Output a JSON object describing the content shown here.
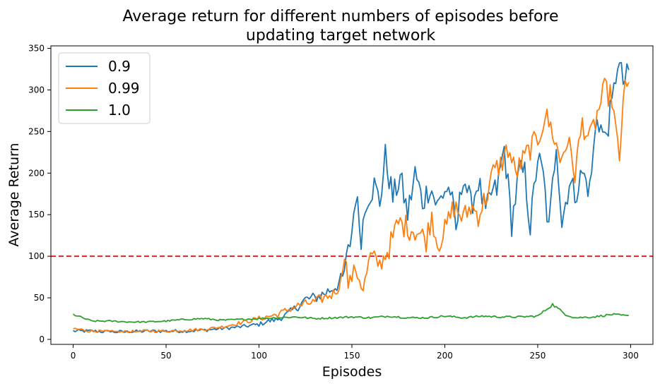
{
  "chart_data": {
    "type": "line",
    "title_lines": [
      "Average return for different numbers of episodes before",
      "updating target network"
    ],
    "xlabel": "Episodes",
    "ylabel": "Average Return",
    "xlim": [
      -12,
      312
    ],
    "ylim": [
      -6,
      353
    ],
    "xticks": [
      0,
      50,
      100,
      150,
      200,
      250,
      300
    ],
    "yticks": [
      0,
      50,
      100,
      150,
      200,
      250,
      300,
      350
    ],
    "grid": false,
    "legend_position": "top-left",
    "threshold": {
      "y": 100,
      "color": "#d62728",
      "style": "dashed"
    },
    "series": [
      {
        "name": "0.9",
        "color": "#1f77b4",
        "anchors": [
          [
            0,
            10
          ],
          [
            10,
            10
          ],
          [
            20,
            9
          ],
          [
            30,
            9
          ],
          [
            40,
            10
          ],
          [
            50,
            10
          ],
          [
            60,
            10
          ],
          [
            70,
            11
          ],
          [
            80,
            13
          ],
          [
            90,
            15
          ],
          [
            100,
            18
          ],
          [
            105,
            22
          ],
          [
            110,
            24
          ],
          [
            115,
            30
          ],
          [
            120,
            38
          ],
          [
            125,
            48
          ],
          [
            130,
            50
          ],
          [
            135,
            55
          ],
          [
            140,
            62
          ],
          [
            145,
            72
          ],
          [
            148,
            105
          ],
          [
            150,
            130
          ],
          [
            152,
            175
          ],
          [
            155,
            125
          ],
          [
            158,
            170
          ],
          [
            162,
            185
          ],
          [
            165,
            165
          ],
          [
            168,
            220
          ],
          [
            172,
            170
          ],
          [
            176,
            195
          ],
          [
            180,
            150
          ],
          [
            184,
            200
          ],
          [
            188,
            165
          ],
          [
            192,
            185
          ],
          [
            196,
            160
          ],
          [
            200,
            180
          ],
          [
            203,
            180
          ],
          [
            206,
            128
          ],
          [
            210,
            200
          ],
          [
            214,
            160
          ],
          [
            218,
            190
          ],
          [
            222,
            150
          ],
          [
            225,
            175
          ],
          [
            228,
            180
          ],
          [
            232,
            230
          ],
          [
            236,
            140
          ],
          [
            240,
            200
          ],
          [
            243,
            200
          ],
          [
            246,
            135
          ],
          [
            250,
            220
          ],
          [
            253,
            195
          ],
          [
            256,
            130
          ],
          [
            260,
            240
          ],
          [
            263,
            140
          ],
          [
            267,
            190
          ],
          [
            270,
            175
          ],
          [
            274,
            200
          ],
          [
            278,
            180
          ],
          [
            282,
            270
          ],
          [
            286,
            240
          ],
          [
            290,
            280
          ],
          [
            293,
            335
          ],
          [
            296,
            310
          ],
          [
            299,
            318
          ]
        ],
        "noise": 17
      },
      {
        "name": "0.99",
        "color": "#ff7f0e",
        "anchors": [
          [
            0,
            13
          ],
          [
            10,
            10
          ],
          [
            20,
            9
          ],
          [
            30,
            9
          ],
          [
            40,
            10
          ],
          [
            50,
            10
          ],
          [
            60,
            11
          ],
          [
            70,
            12
          ],
          [
            80,
            15
          ],
          [
            90,
            20
          ],
          [
            100,
            25
          ],
          [
            110,
            30
          ],
          [
            120,
            40
          ],
          [
            130,
            45
          ],
          [
            140,
            55
          ],
          [
            144,
            68
          ],
          [
            146,
            110
          ],
          [
            148,
            65
          ],
          [
            152,
            85
          ],
          [
            156,
            60
          ],
          [
            160,
            100
          ],
          [
            165,
            90
          ],
          [
            170,
            110
          ],
          [
            175,
            140
          ],
          [
            180,
            135
          ],
          [
            185,
            130
          ],
          [
            190,
            120
          ],
          [
            193,
            150
          ],
          [
            196,
            115
          ],
          [
            200,
            130
          ],
          [
            205,
            160
          ],
          [
            210,
            145
          ],
          [
            214,
            160
          ],
          [
            218,
            150
          ],
          [
            222,
            170
          ],
          [
            226,
            200
          ],
          [
            230,
            210
          ],
          [
            234,
            230
          ],
          [
            238,
            200
          ],
          [
            242,
            215
          ],
          [
            246,
            230
          ],
          [
            250,
            240
          ],
          [
            254,
            270
          ],
          [
            258,
            250
          ],
          [
            262,
            215
          ],
          [
            266,
            240
          ],
          [
            270,
            200
          ],
          [
            274,
            260
          ],
          [
            278,
            240
          ],
          [
            282,
            270
          ],
          [
            286,
            300
          ],
          [
            290,
            290
          ],
          [
            294,
            210
          ],
          [
            296,
            295
          ],
          [
            299,
            303
          ]
        ],
        "noise": 15
      },
      {
        "name": "1.0",
        "color": "#2ca02c",
        "anchors": [
          [
            0,
            30
          ],
          [
            10,
            22
          ],
          [
            20,
            22
          ],
          [
            30,
            21
          ],
          [
            40,
            21
          ],
          [
            50,
            22
          ],
          [
            60,
            24
          ],
          [
            70,
            25
          ],
          [
            80,
            23
          ],
          [
            90,
            24
          ],
          [
            100,
            25
          ],
          [
            110,
            26
          ],
          [
            120,
            27
          ],
          [
            130,
            25
          ],
          [
            140,
            26
          ],
          [
            150,
            27
          ],
          [
            160,
            26
          ],
          [
            170,
            28
          ],
          [
            180,
            26
          ],
          [
            190,
            26
          ],
          [
            200,
            28
          ],
          [
            210,
            26
          ],
          [
            220,
            28
          ],
          [
            230,
            27
          ],
          [
            240,
            27
          ],
          [
            250,
            28
          ],
          [
            258,
            42
          ],
          [
            265,
            30
          ],
          [
            270,
            26
          ],
          [
            280,
            27
          ],
          [
            290,
            30
          ],
          [
            299,
            28
          ]
        ],
        "noise": 5
      }
    ]
  }
}
